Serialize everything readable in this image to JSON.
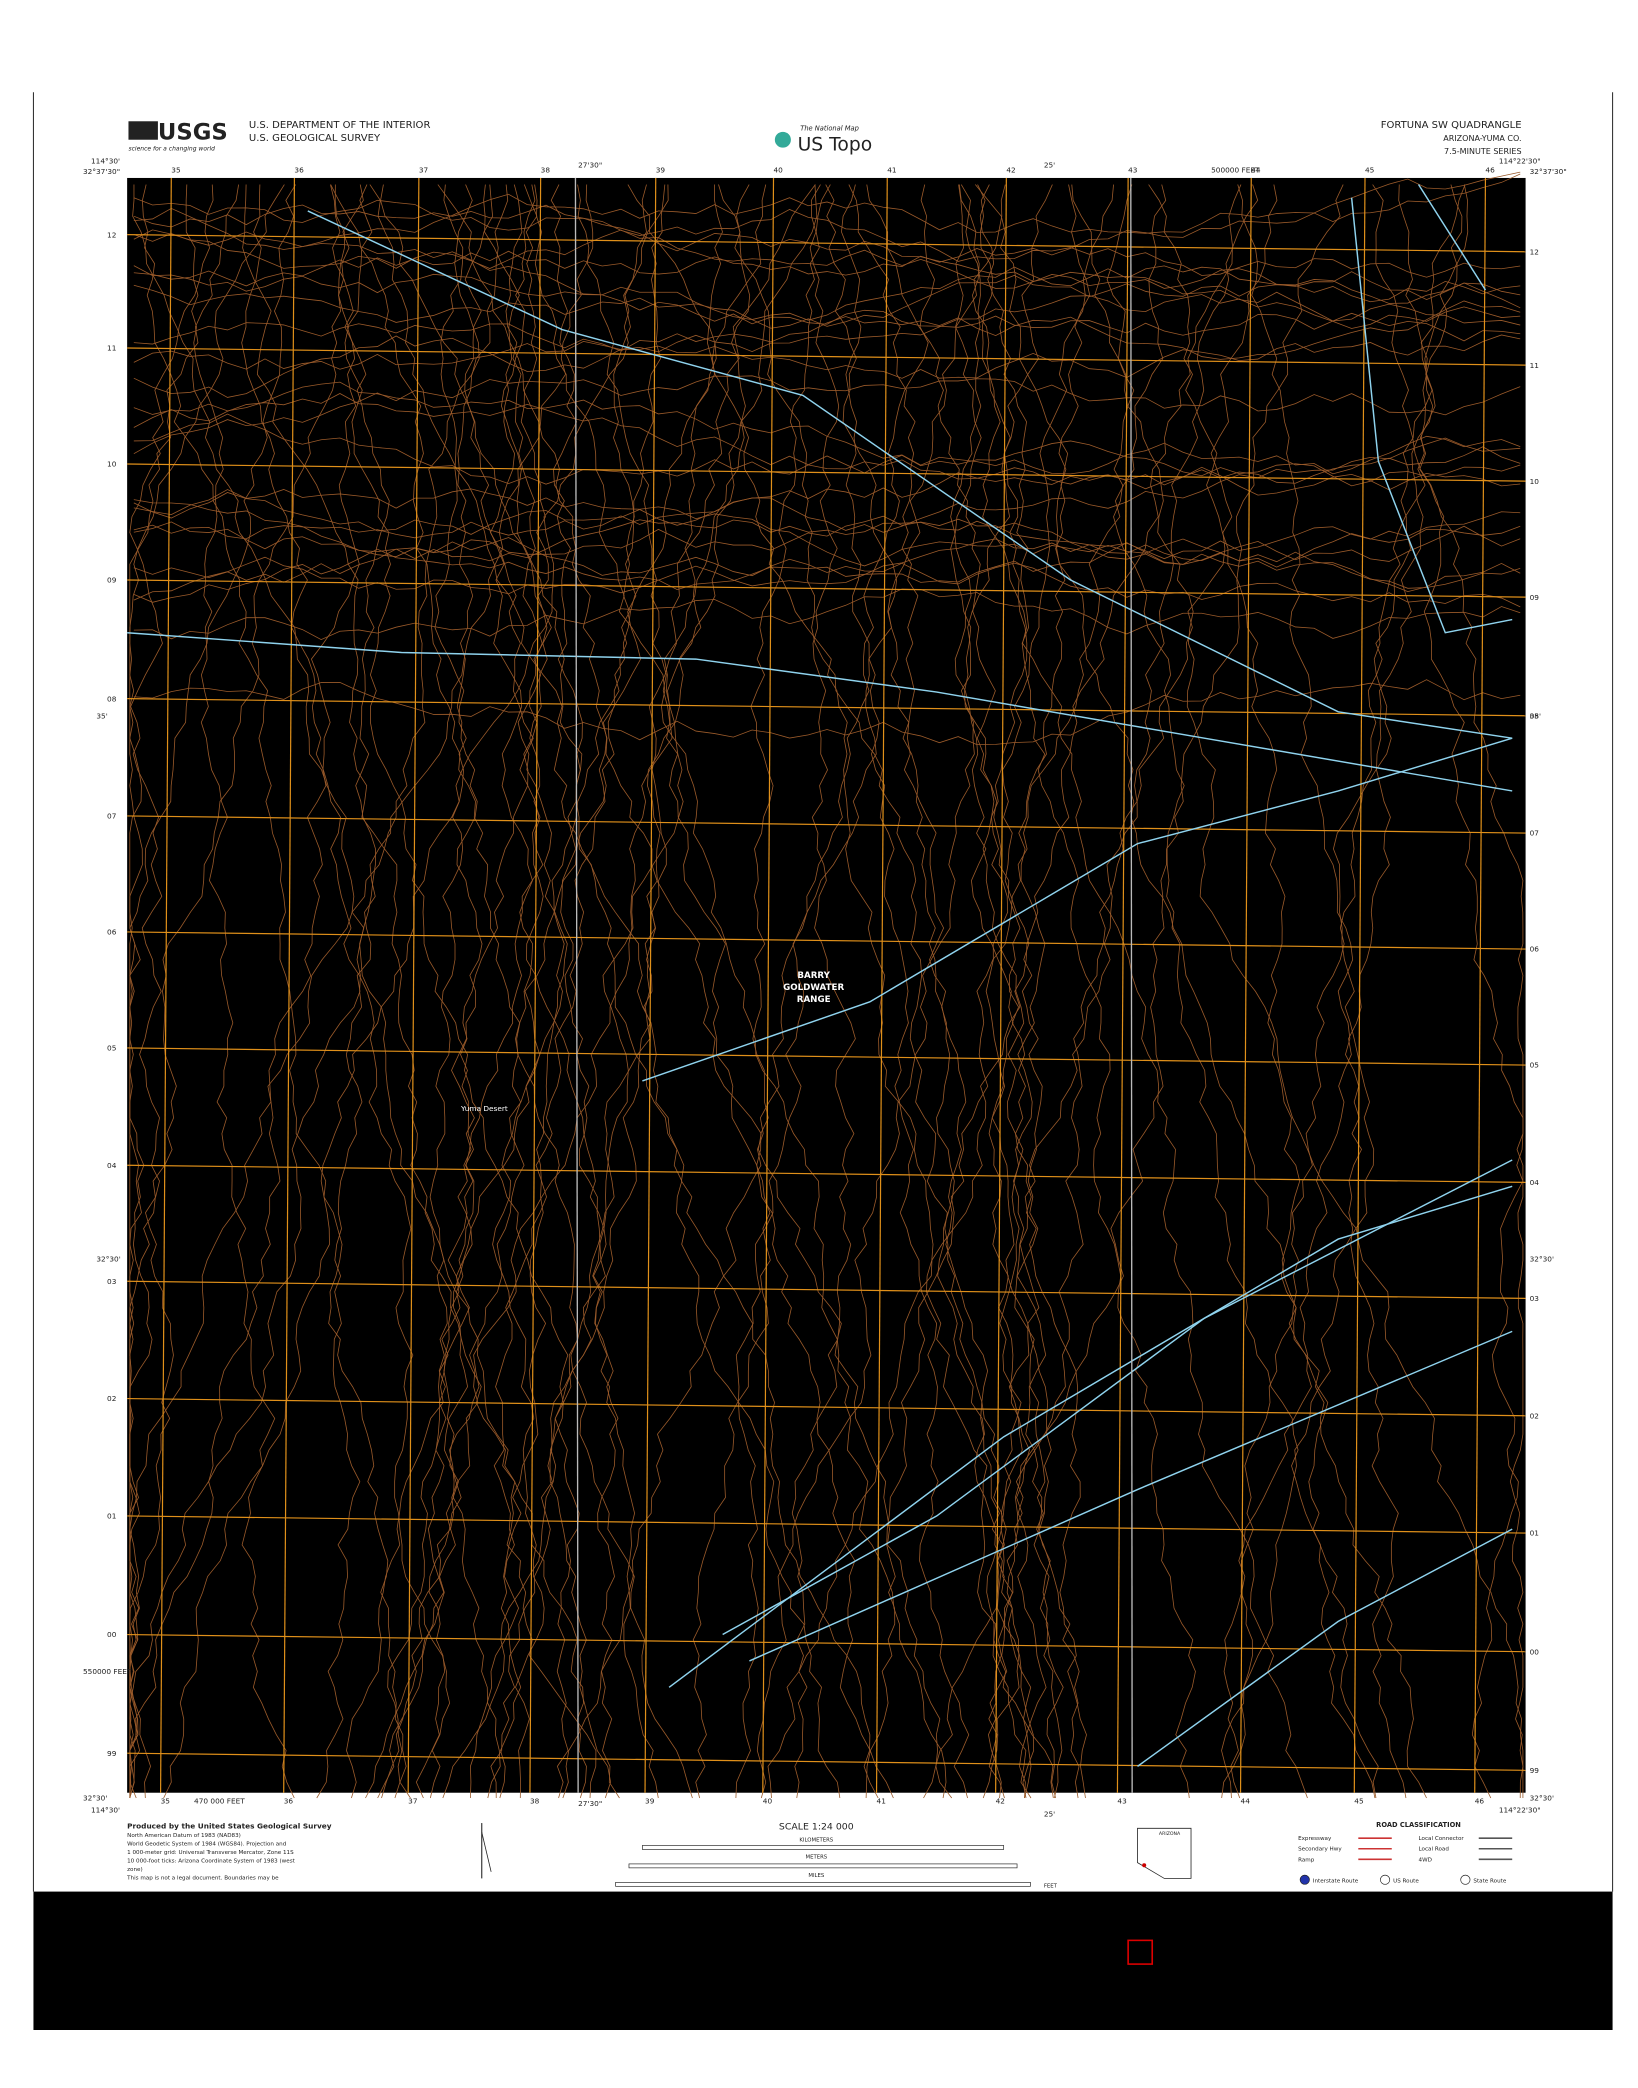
{
  "header": {
    "agency": [
      "U.S. DEPARTMENT OF THE INTERIOR",
      "U.S. GEOLOGICAL SURVEY"
    ],
    "logo": "USGS",
    "logo_tagline": "science for a changing world",
    "product_tagline": "The National Map",
    "product": "US Topo",
    "quad_name": "FORTUNA SW QUADRANGLE",
    "state_county": "ARIZONA-YUMA CO.",
    "series": "7.5-MINUTE SERIES"
  },
  "map": {
    "corners": {
      "top_left_lon": "114°30'",
      "top_left_lat": "32°37'30\"",
      "top_mid_lon": "27'30\"",
      "top_mid2_lon": "25'",
      "top_right_lon": "114°22'30\"",
      "top_right_lat": "32°37'30\"",
      "mid_left_lat": "35'",
      "mid_right_lat": "35'",
      "low_left_lat": "32°30'",
      "low_right_lat": "32°30'",
      "bottom_left_lat": "32°30'",
      "bottom_left_lon": "114°30'",
      "bottom_mid_lon": "27'30\"",
      "bottom_mid2_lon": "25'",
      "bottom_right_lat": "32°30'",
      "bottom_right_lon": "114°22'30\""
    },
    "easting_labels": [
      "35",
      "36",
      "37",
      "38",
      "39",
      "40",
      "41",
      "42",
      "43",
      "44",
      "45",
      "46"
    ],
    "northing_labels": [
      "12",
      "11",
      "10",
      "09",
      "08",
      "07",
      "06",
      "05",
      "04",
      "03",
      "02",
      "01",
      "00",
      "99"
    ],
    "feet_labels": [
      "500000 FEET",
      "470 000 FEET",
      "550000 FEET"
    ],
    "place_labels": [
      "BARRY",
      "GOLDWATER",
      "RANGE",
      "Yuma Desert"
    ]
  },
  "footer": {
    "credits": [
      "Produced by the United States Geological Survey",
      "North American Datum of 1983 (NAD83)",
      "World Geodetic System of 1984 (WGS84). Projection and",
      "1 000-meter grid: Universal Transverse Mercator, Zone 11S",
      "10 000-foot ticks: Arizona Coordinate System of 1983 (west",
      "zone)",
      "This map is not a legal document. Boundaries may be"
    ],
    "scale": "SCALE 1:24 000",
    "scale_units": [
      "KILOMETERS",
      "METERS",
      "MILES",
      "FEET"
    ],
    "road_title": "ROAD CLASSIFICATION",
    "roads": [
      "Expressway",
      "Local Connector",
      "Secondary Hwy",
      "Local Road",
      "Ramp",
      "4WD"
    ],
    "routes": [
      "Interstate Route",
      "US Route",
      "State Route"
    ],
    "state": "ARIZONA"
  }
}
